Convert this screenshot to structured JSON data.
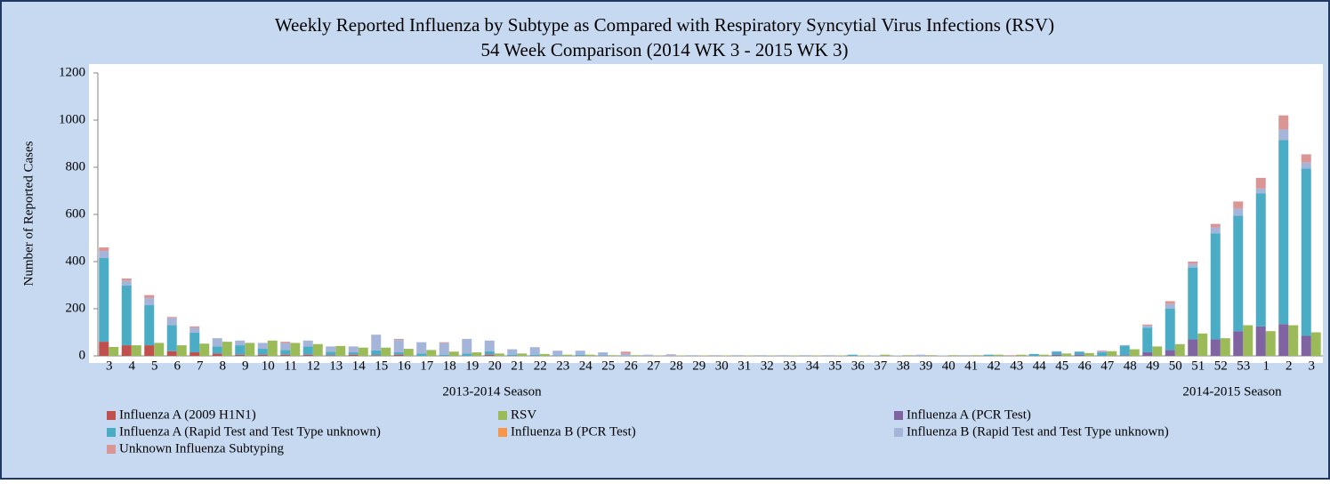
{
  "chart_data": {
    "type": "bar",
    "stacked": true,
    "title": "Weekly Reported Influenza by Subtype as Compared with Respiratory Syncytial Virus Infections (RSV)",
    "subtitle": "54 Week Comparison (2014 WK 3 - 2015 WK 3)",
    "y_label": "Number of Reported Cases",
    "season_labels": [
      "2013-2014 Season",
      "2014-2015 Season"
    ],
    "categories": [
      3,
      4,
      5,
      6,
      7,
      8,
      9,
      10,
      11,
      12,
      13,
      14,
      15,
      16,
      17,
      18,
      19,
      20,
      21,
      22,
      23,
      24,
      25,
      26,
      27,
      28,
      29,
      30,
      31,
      32,
      33,
      34,
      35,
      36,
      37,
      38,
      39,
      40,
      41,
      42,
      43,
      44,
      45,
      46,
      47,
      48,
      49,
      50,
      51,
      52,
      53,
      1,
      2,
      3
    ],
    "ylim": [
      0,
      1200
    ],
    "yticks": [
      0,
      200,
      400,
      600,
      800,
      1000,
      1200
    ],
    "grid": false,
    "legend": "bottom",
    "series": [
      {
        "name": "Influenza A (2009 H1N1)",
        "color": "#c0504d",
        "group": 0,
        "values": [
          60,
          45,
          45,
          20,
          15,
          10,
          5,
          5,
          5,
          5,
          3,
          5,
          3,
          5,
          0,
          0,
          0,
          5,
          0,
          0,
          0,
          0,
          0,
          0,
          0,
          0,
          0,
          0,
          0,
          0,
          0,
          0,
          0,
          0,
          0,
          0,
          0,
          0,
          0,
          0,
          0,
          0,
          0,
          0,
          0,
          0,
          0,
          0,
          0,
          0,
          0,
          0,
          0,
          0
        ]
      },
      {
        "name": "RSV",
        "color": "#9bbb59",
        "group": 1,
        "values": [
          38,
          45,
          55,
          45,
          52,
          60,
          55,
          65,
          55,
          50,
          42,
          35,
          35,
          30,
          25,
          18,
          15,
          10,
          10,
          8,
          5,
          5,
          3,
          3,
          2,
          2,
          2,
          2,
          2,
          2,
          2,
          2,
          2,
          2,
          5,
          3,
          3,
          3,
          3,
          5,
          5,
          5,
          10,
          12,
          20,
          28,
          40,
          50,
          95,
          75,
          130,
          105,
          130,
          100
        ]
      },
      {
        "name": "Influenza A (PCR Test)",
        "color": "#8064a2",
        "group": 0,
        "values": [
          0,
          0,
          0,
          0,
          0,
          0,
          0,
          0,
          0,
          0,
          0,
          0,
          0,
          0,
          0,
          0,
          0,
          0,
          0,
          0,
          0,
          0,
          0,
          0,
          0,
          0,
          0,
          0,
          0,
          0,
          0,
          0,
          0,
          0,
          0,
          0,
          0,
          0,
          0,
          0,
          0,
          0,
          5,
          5,
          0,
          3,
          15,
          25,
          70,
          70,
          105,
          125,
          135,
          85
        ]
      },
      {
        "name": "Influenza A (Rapid Test and Test Type unknown)",
        "color": "#4bacc6",
        "group": 0,
        "values": [
          355,
          253,
          170,
          110,
          83,
          30,
          40,
          25,
          20,
          35,
          15,
          10,
          20,
          10,
          10,
          5,
          10,
          15,
          5,
          5,
          2,
          4,
          2,
          0,
          0,
          0,
          0,
          0,
          0,
          0,
          0,
          0,
          0,
          5,
          0,
          0,
          0,
          0,
          0,
          5,
          0,
          8,
          12,
          13,
          15,
          40,
          105,
          175,
          305,
          450,
          490,
          565,
          780,
          710
        ]
      },
      {
        "name": "Influenza B (PCR Test)",
        "color": "#f79646",
        "group": 0,
        "values": [
          0,
          0,
          0,
          0,
          0,
          0,
          0,
          0,
          0,
          0,
          0,
          0,
          0,
          0,
          0,
          0,
          0,
          0,
          0,
          0,
          0,
          0,
          0,
          0,
          0,
          0,
          0,
          0,
          0,
          0,
          0,
          0,
          0,
          0,
          0,
          0,
          0,
          0,
          0,
          0,
          0,
          0,
          0,
          0,
          0,
          0,
          0,
          0,
          0,
          0,
          0,
          0,
          0,
          0
        ]
      },
      {
        "name": "Influenza B (Rapid Test and Test Type unknown)",
        "color": "#a5b5d9",
        "group": 0,
        "values": [
          30,
          20,
          30,
          30,
          20,
          35,
          20,
          25,
          30,
          25,
          22,
          25,
          67,
          52,
          48,
          50,
          62,
          45,
          23,
          32,
          20,
          18,
          13,
          8,
          5,
          5,
          3,
          3,
          3,
          3,
          3,
          3,
          3,
          0,
          2,
          2,
          5,
          2,
          3,
          0,
          0,
          0,
          3,
          0,
          5,
          3,
          8,
          20,
          15,
          25,
          30,
          20,
          45,
          25
        ]
      },
      {
        "name": "Unknown Influenza Subtyping",
        "color": "#da9694",
        "group": 0,
        "values": [
          15,
          10,
          13,
          5,
          7,
          0,
          0,
          0,
          5,
          0,
          0,
          0,
          0,
          5,
          0,
          3,
          0,
          0,
          0,
          0,
          0,
          0,
          0,
          10,
          0,
          2,
          0,
          0,
          0,
          0,
          0,
          0,
          0,
          0,
          0,
          0,
          0,
          0,
          0,
          0,
          3,
          0,
          0,
          0,
          3,
          0,
          5,
          12,
          10,
          15,
          30,
          45,
          60,
          35
        ]
      }
    ]
  }
}
